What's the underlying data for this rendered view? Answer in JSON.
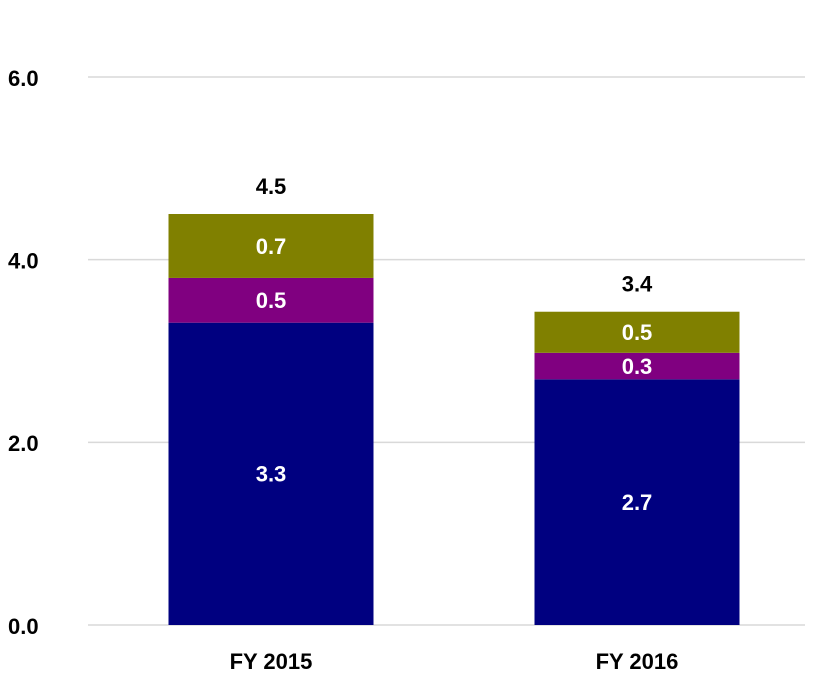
{
  "chart_data": {
    "type": "stacked_bar",
    "categories": [
      "FY 2015",
      "FY 2016"
    ],
    "series": [
      {
        "color": "#000080",
        "values": [
          3.31,
          2.69
        ],
        "value_labels": [
          "3.3",
          "2.7"
        ]
      },
      {
        "color": "#800080",
        "values": [
          0.49,
          0.29
        ],
        "value_labels": [
          "0.5",
          "0.3"
        ]
      },
      {
        "color": "#808000",
        "values": [
          0.7,
          0.45
        ],
        "value_labels": [
          "0.7",
          "0.5"
        ]
      }
    ],
    "totals": [
      "4.5",
      "3.4"
    ],
    "ylim": [
      0,
      6
    ],
    "yticks": [
      {
        "value": 0,
        "label": "0.0"
      },
      {
        "value": 2,
        "label": "2.0"
      },
      {
        "value": 4,
        "label": "4.0"
      },
      {
        "value": 6,
        "label": "6.0"
      }
    ],
    "grid": true
  }
}
